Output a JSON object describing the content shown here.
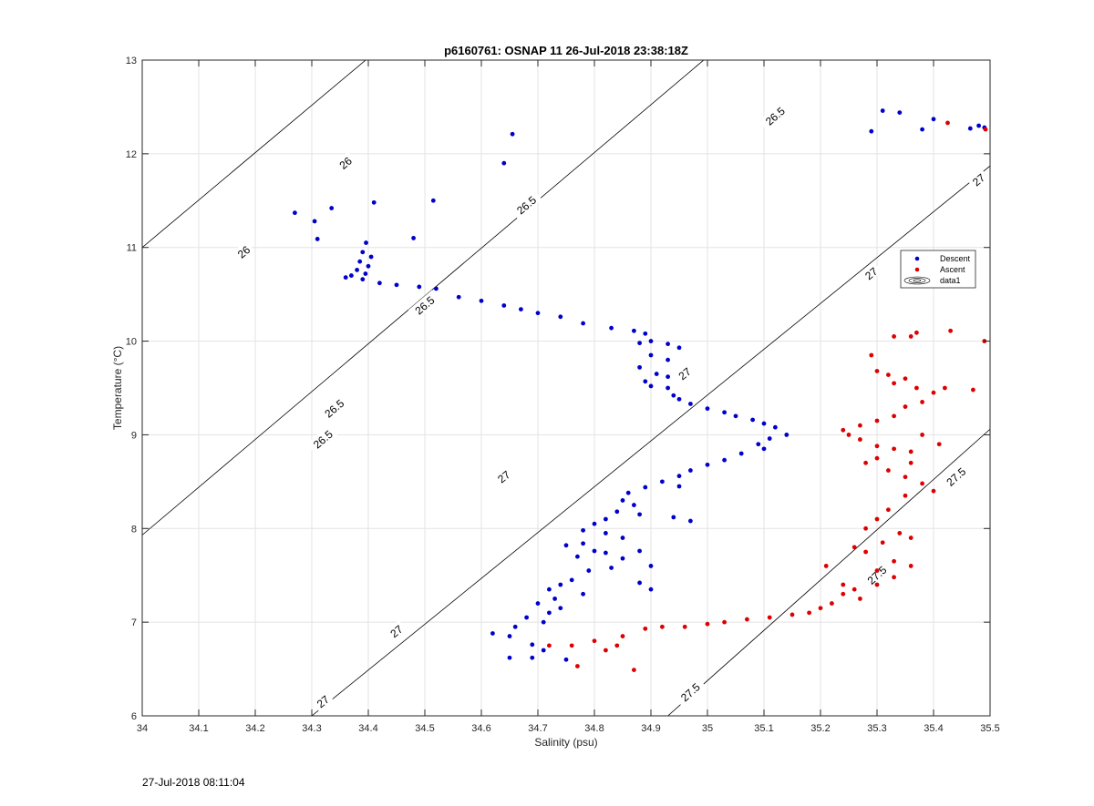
{
  "footer_timestamp": "27-Jul-2018 08:11:04",
  "chart_data": {
    "type": "scatter",
    "title": "p6160761: OSNAP 11 26-Jul-2018 23:38:18Z",
    "xlabel": "Salinity (psu)",
    "ylabel": "Temperature (°C)",
    "xlim": [
      34,
      35.5
    ],
    "ylim": [
      6,
      13
    ],
    "xticks": [
      34,
      34.1,
      34.2,
      34.3,
      34.4,
      34.5,
      34.6,
      34.7,
      34.8,
      34.9,
      35,
      35.1,
      35.2,
      35.3,
      35.4,
      35.5
    ],
    "xtick_labels": [
      "34",
      "34.1",
      "34.2",
      "34.3",
      "34.4",
      "34.5",
      "34.6",
      "34.7",
      "34.8",
      "34.9",
      "35",
      "35.1",
      "35.2",
      "35.3",
      "35.4",
      "35.5"
    ],
    "yticks": [
      6,
      7,
      8,
      9,
      10,
      11,
      12,
      13
    ],
    "ytick_labels": [
      "6",
      "7",
      "8",
      "9",
      "10",
      "11",
      "12",
      "13"
    ],
    "grid": true,
    "legend_position": "right",
    "legend": [
      {
        "label": "Descent",
        "marker": "dot",
        "color": "#0000cc"
      },
      {
        "label": "Ascent",
        "marker": "dot",
        "color": "#dd0000"
      },
      {
        "label": "data1",
        "marker": "contour",
        "color": "#000000"
      }
    ],
    "contours": [
      {
        "level": "26",
        "points": [
          [
            34,
            11.0
          ],
          [
            34.5,
            13.53
          ]
        ],
        "labels": [
          [
            34.18,
            10.95
          ],
          [
            34.36,
            11.9
          ]
        ]
      },
      {
        "level": "26.5",
        "points": [
          [
            34,
            7.93
          ],
          [
            35.15,
            13.8
          ]
        ],
        "labels": [
          [
            34.34,
            9.28
          ],
          [
            34.32,
            8.95
          ],
          [
            34.5,
            10.38
          ],
          [
            34.68,
            11.45
          ],
          [
            35.12,
            12.4
          ]
        ]
      },
      {
        "level": "27",
        "points": [
          [
            34.3,
            6.0
          ],
          [
            35.5,
            11.87
          ]
        ],
        "labels": [
          [
            34.32,
            6.15
          ],
          [
            34.45,
            6.9
          ],
          [
            34.64,
            8.55
          ],
          [
            34.96,
            9.65
          ],
          [
            35.29,
            10.72
          ],
          [
            35.48,
            11.72
          ]
        ]
      },
      {
        "level": "27.5",
        "points": [
          [
            34.93,
            6.0
          ],
          [
            35.5,
            9.06
          ]
        ],
        "labels": [
          [
            34.97,
            6.25
          ],
          [
            35.3,
            7.5
          ],
          [
            35.44,
            8.55
          ]
        ]
      }
    ],
    "series": [
      {
        "name": "Descent",
        "color": "#0000cc",
        "points": [
          [
            34.655,
            12.21
          ],
          [
            34.64,
            11.9
          ],
          [
            34.27,
            11.37
          ],
          [
            34.305,
            11.28
          ],
          [
            34.335,
            11.42
          ],
          [
            34.41,
            11.48
          ],
          [
            34.515,
            11.5
          ],
          [
            34.48,
            11.1
          ],
          [
            34.31,
            11.09
          ],
          [
            34.396,
            11.05
          ],
          [
            34.39,
            10.95
          ],
          [
            34.405,
            10.9
          ],
          [
            34.385,
            10.85
          ],
          [
            34.4,
            10.8
          ],
          [
            34.38,
            10.76
          ],
          [
            34.395,
            10.72
          ],
          [
            34.37,
            10.7
          ],
          [
            34.36,
            10.68
          ],
          [
            34.39,
            10.66
          ],
          [
            34.42,
            10.62
          ],
          [
            34.45,
            10.6
          ],
          [
            34.49,
            10.58
          ],
          [
            34.52,
            10.56
          ],
          [
            34.56,
            10.47
          ],
          [
            34.6,
            10.43
          ],
          [
            34.64,
            10.38
          ],
          [
            34.67,
            10.34
          ],
          [
            34.7,
            10.3
          ],
          [
            34.74,
            10.26
          ],
          [
            34.78,
            10.19
          ],
          [
            34.83,
            10.14
          ],
          [
            34.87,
            10.11
          ],
          [
            34.89,
            10.08
          ],
          [
            34.9,
            10.0
          ],
          [
            34.88,
            9.98
          ],
          [
            34.93,
            9.97
          ],
          [
            34.95,
            9.93
          ],
          [
            34.9,
            9.85
          ],
          [
            34.93,
            9.8
          ],
          [
            34.88,
            9.72
          ],
          [
            34.91,
            9.65
          ],
          [
            34.93,
            9.62
          ],
          [
            34.89,
            9.57
          ],
          [
            34.9,
            9.52
          ],
          [
            34.93,
            9.5
          ],
          [
            34.94,
            9.42
          ],
          [
            34.95,
            9.38
          ],
          [
            34.97,
            9.33
          ],
          [
            35.0,
            9.28
          ],
          [
            35.03,
            9.24
          ],
          [
            35.05,
            9.2
          ],
          [
            35.08,
            9.16
          ],
          [
            35.1,
            9.12
          ],
          [
            35.12,
            9.08
          ],
          [
            35.14,
            9.0
          ],
          [
            35.11,
            8.96
          ],
          [
            35.09,
            8.9
          ],
          [
            35.1,
            8.85
          ],
          [
            35.06,
            8.8
          ],
          [
            35.03,
            8.73
          ],
          [
            35.0,
            8.68
          ],
          [
            34.97,
            8.62
          ],
          [
            34.95,
            8.56
          ],
          [
            34.92,
            8.5
          ],
          [
            34.89,
            8.44
          ],
          [
            34.86,
            8.38
          ],
          [
            34.85,
            8.3
          ],
          [
            34.87,
            8.25
          ],
          [
            34.84,
            8.18
          ],
          [
            34.88,
            8.15
          ],
          [
            34.82,
            8.1
          ],
          [
            34.8,
            8.05
          ],
          [
            34.78,
            7.98
          ],
          [
            34.82,
            7.95
          ],
          [
            34.85,
            7.9
          ],
          [
            34.78,
            7.84
          ],
          [
            34.75,
            7.82
          ],
          [
            34.8,
            7.76
          ],
          [
            34.82,
            7.74
          ],
          [
            34.77,
            7.7
          ],
          [
            34.85,
            7.68
          ],
          [
            34.88,
            7.76
          ],
          [
            34.9,
            7.6
          ],
          [
            34.83,
            7.58
          ],
          [
            34.79,
            7.55
          ],
          [
            34.76,
            7.45
          ],
          [
            34.74,
            7.4
          ],
          [
            34.72,
            7.35
          ],
          [
            34.78,
            7.3
          ],
          [
            34.73,
            7.25
          ],
          [
            34.7,
            7.2
          ],
          [
            34.74,
            7.15
          ],
          [
            34.72,
            7.1
          ],
          [
            34.68,
            7.05
          ],
          [
            34.71,
            7.0
          ],
          [
            34.66,
            6.95
          ],
          [
            34.62,
            6.88
          ],
          [
            34.65,
            6.85
          ],
          [
            34.69,
            6.76
          ],
          [
            34.71,
            6.7
          ],
          [
            34.69,
            6.62
          ],
          [
            34.75,
            6.6
          ],
          [
            34.65,
            6.62
          ],
          [
            34.88,
            7.42
          ],
          [
            34.9,
            7.35
          ],
          [
            34.95,
            8.45
          ],
          [
            34.97,
            8.08
          ],
          [
            34.94,
            8.12
          ],
          [
            35.31,
            12.46
          ],
          [
            35.34,
            12.44
          ],
          [
            35.29,
            12.24
          ],
          [
            35.38,
            12.26
          ],
          [
            35.4,
            12.37
          ],
          [
            35.465,
            12.27
          ],
          [
            35.48,
            12.3
          ],
          [
            35.49,
            12.28
          ]
        ]
      },
      {
        "name": "Ascent",
        "color": "#dd0000",
        "points": [
          [
            35.425,
            12.33
          ],
          [
            35.492,
            12.26
          ],
          [
            35.49,
            10.0
          ],
          [
            35.43,
            10.11
          ],
          [
            35.37,
            10.09
          ],
          [
            35.36,
            10.05
          ],
          [
            35.33,
            10.05
          ],
          [
            35.29,
            9.85
          ],
          [
            35.3,
            9.68
          ],
          [
            35.32,
            9.64
          ],
          [
            35.35,
            9.6
          ],
          [
            35.33,
            9.55
          ],
          [
            35.37,
            9.5
          ],
          [
            35.4,
            9.45
          ],
          [
            35.42,
            9.5
          ],
          [
            35.47,
            9.48
          ],
          [
            35.38,
            9.35
          ],
          [
            35.35,
            9.3
          ],
          [
            35.33,
            9.2
          ],
          [
            35.3,
            9.15
          ],
          [
            35.27,
            9.1
          ],
          [
            35.24,
            9.05
          ],
          [
            35.25,
            9.0
          ],
          [
            35.27,
            8.95
          ],
          [
            35.3,
            8.88
          ],
          [
            35.33,
            8.85
          ],
          [
            35.36,
            8.82
          ],
          [
            35.3,
            8.75
          ],
          [
            35.28,
            8.7
          ],
          [
            35.32,
            8.62
          ],
          [
            35.35,
            8.55
          ],
          [
            35.38,
            8.48
          ],
          [
            35.4,
            8.4
          ],
          [
            35.35,
            8.35
          ],
          [
            35.32,
            8.2
          ],
          [
            35.3,
            8.1
          ],
          [
            35.28,
            8.0
          ],
          [
            35.34,
            7.95
          ],
          [
            35.36,
            7.9
          ],
          [
            35.31,
            7.85
          ],
          [
            35.26,
            7.8
          ],
          [
            35.28,
            7.75
          ],
          [
            35.33,
            7.65
          ],
          [
            35.36,
            7.6
          ],
          [
            35.3,
            7.55
          ],
          [
            35.33,
            7.48
          ],
          [
            35.3,
            7.4
          ],
          [
            35.26,
            7.35
          ],
          [
            35.24,
            7.3
          ],
          [
            35.27,
            7.25
          ],
          [
            35.22,
            7.2
          ],
          [
            35.2,
            7.15
          ],
          [
            35.18,
            7.1
          ],
          [
            35.15,
            7.08
          ],
          [
            35.11,
            7.05
          ],
          [
            35.07,
            7.03
          ],
          [
            35.03,
            7.0
          ],
          [
            35.0,
            6.98
          ],
          [
            34.96,
            6.95
          ],
          [
            34.92,
            6.95
          ],
          [
            34.89,
            6.93
          ],
          [
            34.85,
            6.85
          ],
          [
            34.8,
            6.8
          ],
          [
            34.76,
            6.75
          ],
          [
            34.72,
            6.75
          ],
          [
            34.77,
            6.53
          ],
          [
            34.87,
            6.49
          ],
          [
            34.82,
            6.7
          ],
          [
            34.84,
            6.75
          ],
          [
            35.21,
            7.6
          ],
          [
            35.38,
            9.0
          ],
          [
            35.41,
            8.9
          ],
          [
            35.36,
            8.7
          ],
          [
            35.24,
            7.4
          ]
        ]
      }
    ]
  }
}
